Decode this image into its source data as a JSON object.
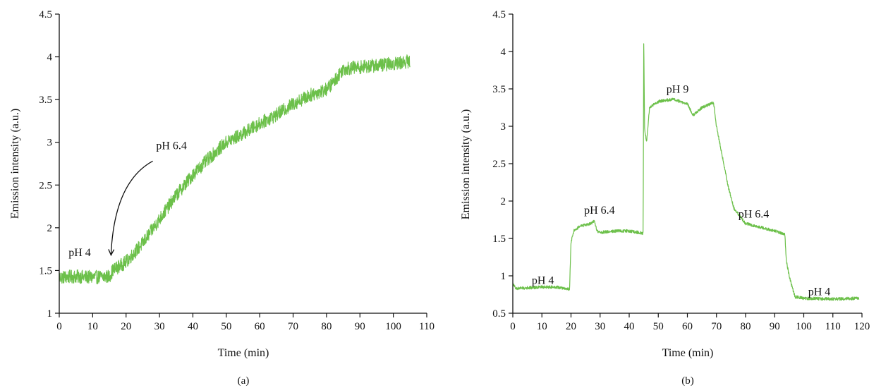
{
  "colors": {
    "line": "#6cc04a",
    "axis": "#111111",
    "arrow": "#111111"
  },
  "chart_data": [
    {
      "type": "line",
      "panel_label": "(a)",
      "xlabel": "Time (min)",
      "ylabel": "Emission intensity (a.u.)",
      "xlim": [
        0,
        110
      ],
      "ylim": [
        1,
        4.5
      ],
      "xticks": [
        0,
        10,
        20,
        30,
        40,
        50,
        60,
        70,
        80,
        90,
        100,
        110
      ],
      "yticks": [
        1,
        1.5,
        2,
        2.5,
        3,
        3.5,
        4,
        4.5
      ],
      "ytick_labels": [
        "1",
        "1.5",
        "2",
        "2.5",
        "3",
        "3.5",
        "4",
        "4.5"
      ],
      "grid": false,
      "noise_amplitude": 0.08,
      "series": [
        {
          "x": [
            0,
            5,
            10,
            15,
            16,
            20,
            25,
            30,
            35,
            40,
            45,
            50,
            55,
            60,
            65,
            70,
            75,
            80,
            82,
            85,
            90,
            95,
            100,
            105
          ],
          "y": [
            1.42,
            1.43,
            1.42,
            1.43,
            1.5,
            1.6,
            1.82,
            2.1,
            2.38,
            2.62,
            2.82,
            3.0,
            3.1,
            3.22,
            3.32,
            3.45,
            3.55,
            3.62,
            3.7,
            3.86,
            3.88,
            3.9,
            3.92,
            3.95
          ]
        }
      ],
      "annotations": [
        {
          "text": "pH 4",
          "x": 2.8,
          "y": 1.67
        },
        {
          "text": "pH 6.4",
          "x": 29,
          "y": 2.92
        }
      ],
      "arrow": {
        "from": [
          28,
          2.78
        ],
        "to": [
          15.5,
          1.68
        ]
      }
    },
    {
      "type": "line",
      "panel_label": "(b)",
      "xlabel": "Time (min)",
      "ylabel": "Emission intensity (a.u.)",
      "xlim": [
        0,
        120
      ],
      "ylim": [
        0.5,
        4.5
      ],
      "xticks": [
        0,
        10,
        20,
        30,
        40,
        50,
        60,
        70,
        80,
        90,
        100,
        110,
        120
      ],
      "yticks": [
        0.5,
        1,
        1.5,
        2,
        2.5,
        3,
        3.5,
        4,
        4.5
      ],
      "ytick_labels": [
        "0.5",
        "1",
        "1.5",
        "2",
        "2.5",
        "3",
        "3.5",
        "4",
        "4.5"
      ],
      "grid": false,
      "noise_amplitude": 0.02,
      "series": [
        {
          "x": [
            0,
            1,
            5,
            10,
            15,
            19.5,
            20,
            21,
            23,
            25,
            27,
            28,
            29,
            30,
            35,
            40,
            44.8,
            45,
            45.3,
            46,
            47,
            50,
            55,
            60,
            62,
            65,
            68,
            69,
            70,
            72,
            74,
            76,
            80,
            85,
            90,
            93.5,
            94,
            95,
            96,
            97,
            100,
            110,
            119
          ],
          "y": [
            0.9,
            0.83,
            0.84,
            0.85,
            0.85,
            0.82,
            1.45,
            1.6,
            1.66,
            1.68,
            1.7,
            1.73,
            1.6,
            1.58,
            1.6,
            1.6,
            1.57,
            4.18,
            2.95,
            2.8,
            3.25,
            3.33,
            3.36,
            3.3,
            3.15,
            3.25,
            3.3,
            3.32,
            3.0,
            2.6,
            2.2,
            1.9,
            1.7,
            1.65,
            1.6,
            1.56,
            1.2,
            1.0,
            0.85,
            0.72,
            0.7,
            0.69,
            0.7
          ]
        }
      ],
      "annotations": [
        {
          "text": "pH 4",
          "x": 6.5,
          "y": 0.89
        },
        {
          "text": "pH 6.4",
          "x": 24.5,
          "y": 1.83
        },
        {
          "text": "pH 9",
          "x": 52.8,
          "y": 3.45
        },
        {
          "text": "pH 6.4",
          "x": 77.5,
          "y": 1.78
        },
        {
          "text": "pH 4",
          "x": 101.5,
          "y": 0.74
        }
      ]
    }
  ]
}
